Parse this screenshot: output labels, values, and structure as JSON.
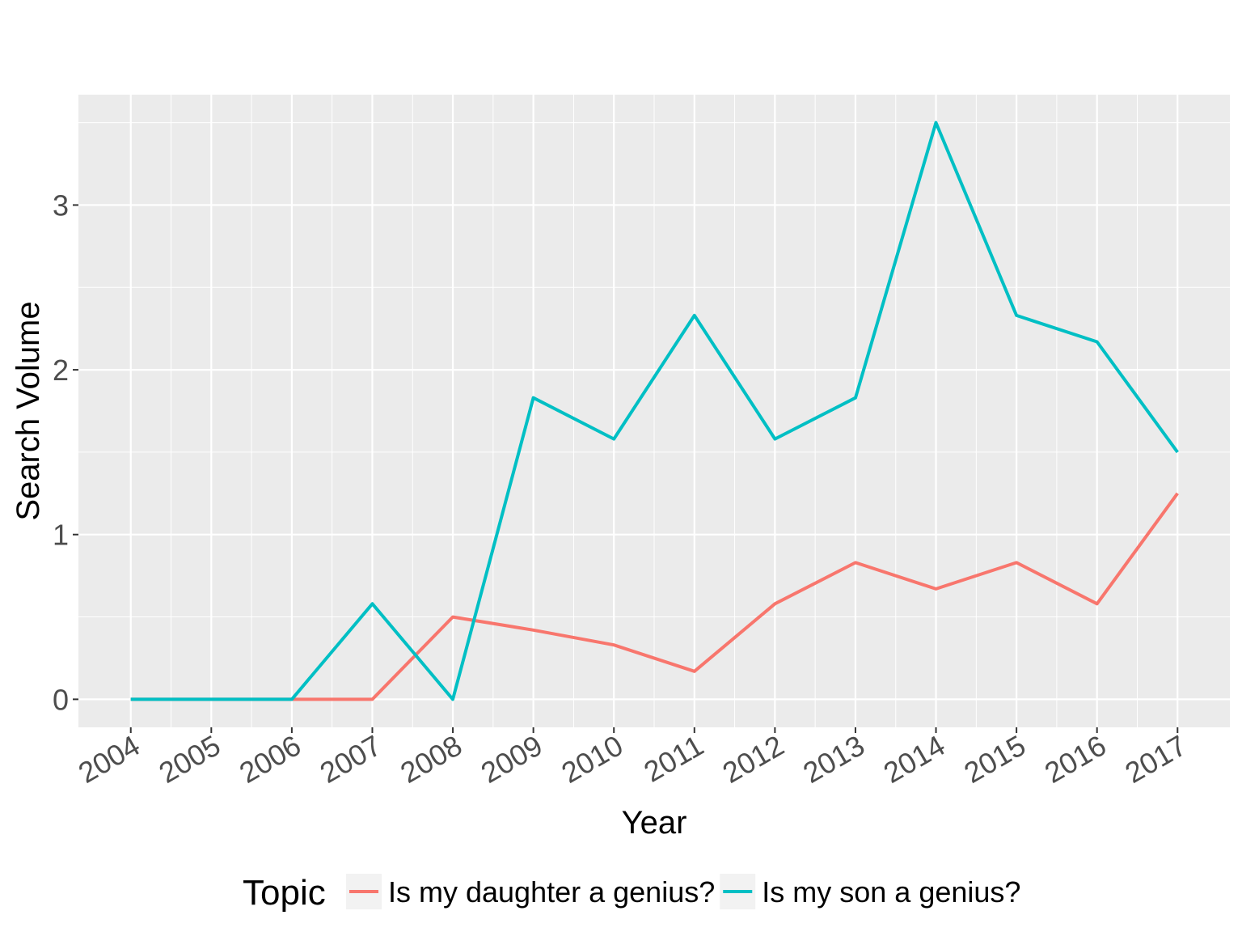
{
  "chart_data": {
    "type": "line",
    "title": "",
    "xlabel": "Year",
    "ylabel": "Search Volume",
    "x": [
      2004,
      2005,
      2006,
      2007,
      2008,
      2009,
      2010,
      2011,
      2012,
      2013,
      2014,
      2015,
      2016,
      2017
    ],
    "x_tick_labels": [
      "2004",
      "2005",
      "2006",
      "2007",
      "2008",
      "2009",
      "2010",
      "2011",
      "2012",
      "2013",
      "2014",
      "2015",
      "2016",
      "2017"
    ],
    "y_ticks": [
      0,
      1,
      2,
      3
    ],
    "y_tick_labels": [
      "0",
      "1",
      "2",
      "3"
    ],
    "xlim": [
      2003.35,
      2017.65
    ],
    "ylim": [
      -0.17,
      3.67
    ],
    "grid": true,
    "legend": {
      "title": "Topic",
      "placement": "bottom"
    },
    "series": [
      {
        "name": "Is my daughter a genius?",
        "color": "#F8766D",
        "values": [
          0,
          0,
          0,
          0,
          0.5,
          0.42,
          0.33,
          0.17,
          0.58,
          0.83,
          0.67,
          0.83,
          0.58,
          1.25
        ]
      },
      {
        "name": "Is my son a genius?",
        "color": "#00BFC4",
        "values": [
          0,
          0,
          0,
          0.58,
          0,
          1.83,
          1.58,
          2.33,
          1.58,
          1.83,
          3.5,
          2.33,
          2.17,
          1.5
        ]
      }
    ]
  },
  "colors": {
    "panel_background": "#EBEBEB",
    "grid": "#FFFFFF",
    "legend_key_background": "#F2F2F2"
  }
}
